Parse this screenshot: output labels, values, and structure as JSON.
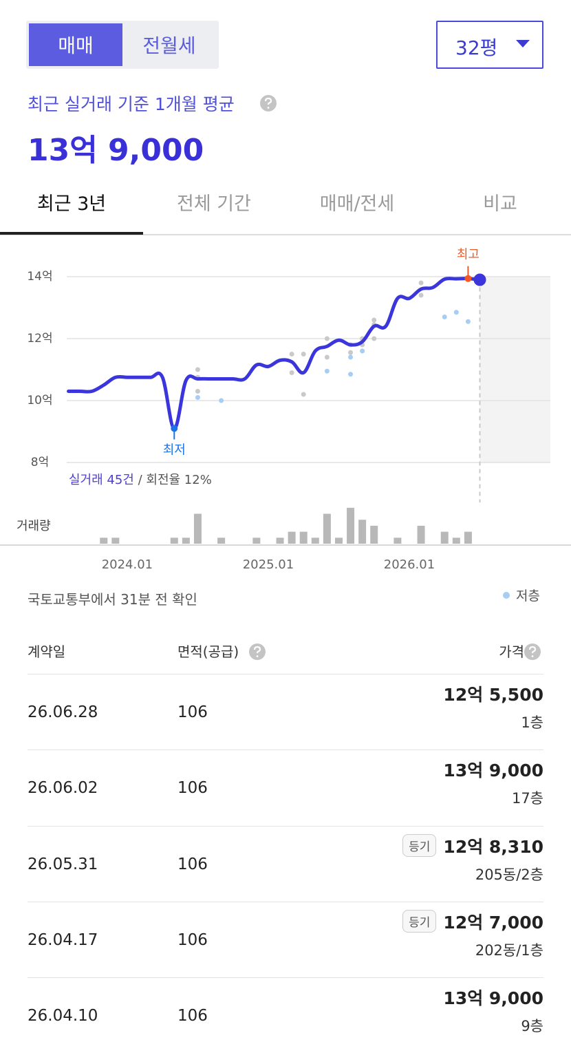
{
  "deal_tabs": [
    "매매",
    "전월세"
  ],
  "size_select": "32평",
  "summary": {
    "label": "최근 실거래 기준 1개월 평균",
    "price": "13억 9,000"
  },
  "period_tabs": [
    "최근 3년",
    "전체 기간",
    "매매/전세",
    "비교"
  ],
  "chart_data": {
    "type": "line",
    "x": [
      "2023.08",
      "2023.09",
      "2023.10",
      "2023.11",
      "2023.12",
      "2024.01",
      "2024.02",
      "2024.03",
      "2024.04",
      "2024.05",
      "2024.06",
      "2024.07",
      "2024.08",
      "2024.09",
      "2024.10",
      "2024.11",
      "2024.12",
      "2025.01",
      "2025.02",
      "2025.03",
      "2025.04",
      "2025.05",
      "2025.06",
      "2025.07",
      "2025.08",
      "2025.09",
      "2025.10",
      "2025.11",
      "2025.12",
      "2026.01",
      "2026.02",
      "2026.03",
      "2026.04",
      "2026.05",
      "2026.06",
      "2026.07"
    ],
    "series": [
      {
        "type": "line",
        "color": "#3b36db",
        "values": [
          10.3,
          10.3,
          10.3,
          10.5,
          10.75,
          10.75,
          10.75,
          10.75,
          10.75,
          9.1,
          10.65,
          10.7,
          10.7,
          10.7,
          10.7,
          10.7,
          11.15,
          11.1,
          11.3,
          11.25,
          10.9,
          11.6,
          11.75,
          11.95,
          11.8,
          11.9,
          12.4,
          12.4,
          13.3,
          13.3,
          13.6,
          13.65,
          13.92,
          13.93,
          13.94,
          13.9
        ]
      },
      {
        "type": "scatter",
        "color": "#c9c9c9",
        "x": [
          "2024.07",
          "2024.07",
          "2024.07",
          "2025.03",
          "2025.03",
          "2025.04",
          "2025.04",
          "2025.06",
          "2025.06",
          "2025.08",
          "2025.08",
          "2025.09",
          "2025.09",
          "2025.10",
          "2025.10",
          "2025.10",
          "2026.02",
          "2026.02"
        ],
        "values": [
          11.0,
          10.75,
          10.3,
          11.5,
          10.9,
          11.5,
          10.2,
          12.0,
          11.4,
          11.8,
          11.55,
          12.0,
          11.8,
          12.6,
          12.45,
          12.0,
          13.8,
          13.4
        ]
      },
      {
        "type": "scatter",
        "name": "저층",
        "color": "#a8cdf3",
        "x": [
          "2024.07",
          "2024.09",
          "2025.06",
          "2025.08",
          "2025.08",
          "2025.09",
          "2026.04",
          "2026.05",
          "2026.06"
        ],
        "values": [
          10.1,
          10.0,
          10.95,
          11.4,
          10.85,
          11.6,
          12.7,
          12.85,
          12.55
        ]
      }
    ],
    "annotations": {
      "max": "최고",
      "min": "최저"
    },
    "xlim": [
      "2023.08",
      "2027.01"
    ],
    "xticks": [
      "2024.01",
      "2025.01",
      "2026.01"
    ],
    "ylim": [
      8,
      14
    ],
    "yticks": [
      {
        "value": 8,
        "label": "8억"
      },
      {
        "value": 10,
        "label": "10억"
      },
      {
        "value": 12,
        "label": "12억"
      },
      {
        "value": 14,
        "label": "14억"
      }
    ],
    "grid": true,
    "trade_count": "실거래 45건",
    "turnover": "/ 회전율 12%",
    "volume": {
      "label": "거래량",
      "color": "#b8b8b8",
      "x": [
        "2023.11",
        "2023.12",
        "2024.05",
        "2024.06",
        "2024.07",
        "2024.09",
        "2024.12",
        "2025.02",
        "2025.03",
        "2025.04",
        "2025.05",
        "2025.06",
        "2025.07",
        "2025.08",
        "2025.09",
        "2025.10",
        "2025.12",
        "2026.02",
        "2026.04",
        "2026.05",
        "2026.06"
      ],
      "values": [
        1,
        1,
        1,
        1,
        5,
        1,
        1,
        1,
        2,
        2,
        1,
        5,
        1,
        6,
        4,
        3,
        1,
        3,
        2,
        1,
        2
      ]
    }
  },
  "source_note": "국토교통부에서 31분 전 확인",
  "table": {
    "headers": [
      "계약일",
      "면적(공급)",
      "가격"
    ],
    "rows": [
      {
        "date": "26.06.28",
        "area": 106,
        "price": "12억 5,500",
        "floor": "1층"
      },
      {
        "date": "26.06.02",
        "area": 106,
        "price": "13억 9,000",
        "floor": "17층"
      },
      {
        "date": "26.05.31",
        "area": 106,
        "tag": "등기",
        "price": "12억 8,310",
        "floor": "205동/2층"
      },
      {
        "date": "26.04.17",
        "area": 106,
        "tag": "등기",
        "price": "12억 7,000",
        "floor": "202동/1층"
      },
      {
        "date": "26.04.10",
        "area": 106,
        "price": "13억 9,000",
        "floor": "9층"
      }
    ]
  }
}
